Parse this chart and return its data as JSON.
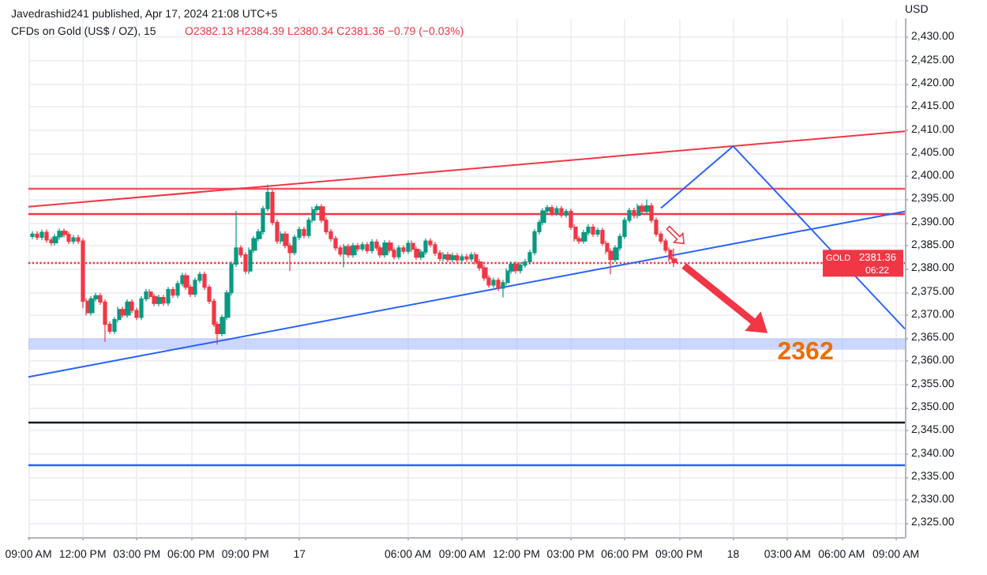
{
  "chart_data": {
    "type": "candlestick",
    "title": "CFDs on Gold (US$ / OZ), 15",
    "subtitle": "O2382.13 H2384.39 L2380.34 C2381.36 −0.79 (−0.03%)",
    "ylabel": "USD",
    "annotations": [
      "Javedrashid241 published, Apr 17, 2024 21:08 UTC+5",
      "GOLD",
      "06:22",
      {
        "text": "2362",
        "x": "2024-04-18T04:00",
        "y": 2362
      }
    ],
    "colors": [
      "#089981",
      "#f23645",
      "#089981",
      "#f23645",
      "#f23645",
      "#089981",
      "#089981",
      "#f23645",
      "#f23645",
      "#089981",
      "#f23645",
      "#f23645",
      "#f23645",
      "#089981",
      "#089981",
      "#f23645",
      "#f23645",
      "#f23645",
      "#089981",
      "#089981",
      "#f23645",
      "#089981",
      "#f23645",
      "#f23645",
      "#089981",
      "#089981",
      "#f23645",
      "#f23645",
      "#089981",
      "#f23645",
      "#089981",
      "#f23645",
      "#089981",
      "#089981",
      "#f23645",
      "#f23645",
      "#089981",
      "#089981",
      "#f23645",
      "#f23645",
      "#f23645",
      "#f23645",
      "#089981",
      "#089981",
      "#089981",
      "#089981",
      "#f23645",
      "#f23645",
      "#089981",
      "#089981",
      "#089981",
      "#089981",
      "#089981",
      "#f23645",
      "#f23645",
      "#089981",
      "#f23645",
      "#f23645",
      "#089981",
      "#089981",
      "#f23645",
      "#089981",
      "#089981",
      "#089981",
      "#f23645",
      "#f23645",
      "#f23645",
      "#f23645",
      "#f23645",
      "#089981",
      "#f23645",
      "#089981",
      "#f23645",
      "#089981",
      "#f23645",
      "#089981",
      "#f23645",
      "#f23645",
      "#089981",
      "#f23645",
      "#f23645",
      "#089981",
      "#f23645",
      "#089981",
      "#f23645",
      "#f23645",
      "#089981",
      "#089981",
      "#f23645",
      "#f23645",
      "#f23645",
      "#089981",
      "#f23645",
      "#089981",
      "#f23645",
      "#089981",
      "#f23645",
      "#089981",
      "#f23645",
      "#f23645",
      "#f23645",
      "#f23645",
      "#089981",
      "#f23645",
      "#089981",
      "#089981",
      "#089981",
      "#f23645",
      "#089981",
      "#089981",
      "#089981",
      "#089981",
      "#089981",
      "#089981",
      "#089981",
      "#f23645",
      "#089981",
      "#f23645",
      "#089981",
      "#f23645",
      "#f23645",
      "#f23645",
      "#089981",
      "#089981",
      "#f23645",
      "#089981",
      "#f23645",
      "#f23645",
      "#f23645",
      "#089981",
      "#089981",
      "#089981",
      "#089981",
      "#f23645",
      "#089981",
      "#f23645",
      "#089981",
      "#f23645",
      "#f23645",
      "#f23645",
      "#f23645",
      "#f23645",
      "#f23645"
    ],
    "x": [
      "2024-04-16T09:15",
      "2024-04-16T09:30",
      "2024-04-16T09:45",
      "2024-04-16T10:00",
      "2024-04-16T10:15",
      "2024-04-16T10:30",
      "2024-04-16T10:45",
      "2024-04-16T11:00",
      "2024-04-16T11:15",
      "2024-04-16T11:30",
      "2024-04-16T11:45",
      "2024-04-16T12:00",
      "2024-04-16T12:15",
      "2024-04-16T12:30",
      "2024-04-16T12:45",
      "2024-04-16T13:00",
      "2024-04-16T13:15",
      "2024-04-16T13:30",
      "2024-04-16T13:45",
      "2024-04-16T14:00",
      "2024-04-16T14:15",
      "2024-04-16T14:30",
      "2024-04-16T14:45",
      "2024-04-16T15:00",
      "2024-04-16T15:15",
      "2024-04-16T15:30",
      "2024-04-16T15:45",
      "2024-04-16T16:00",
      "2024-04-16T16:15",
      "2024-04-16T16:30",
      "2024-04-16T16:45",
      "2024-04-16T17:00",
      "2024-04-16T17:15",
      "2024-04-16T17:30",
      "2024-04-16T17:45",
      "2024-04-16T18:00",
      "2024-04-16T18:15",
      "2024-04-16T18:30",
      "2024-04-16T18:45",
      "2024-04-16T19:00",
      "2024-04-16T19:15",
      "2024-04-16T19:30",
      "2024-04-16T19:45",
      "2024-04-16T20:00",
      "2024-04-16T20:15",
      "2024-04-16T20:30",
      "2024-04-16T20:45",
      "2024-04-16T21:00",
      "2024-04-16T21:15",
      "2024-04-16T21:30",
      "2024-04-16T21:45",
      "2024-04-16T22:00",
      "2024-04-16T22:15",
      "2024-04-16T22:30",
      "2024-04-16T22:45",
      "2024-04-16T23:00",
      "2024-04-16T23:15",
      "2024-04-16T23:30",
      "2024-04-16T23:45",
      "2024-04-17T00:00",
      "2024-04-17T00:15",
      "2024-04-17T00:30",
      "2024-04-17T00:45",
      "2024-04-17T01:00",
      "2024-04-17T01:15",
      "2024-04-17T01:30",
      "2024-04-17T01:45",
      "2024-04-17T02:00",
      "2024-04-17T02:15",
      "2024-04-17T02:30",
      "2024-04-17T02:45",
      "2024-04-17T03:00",
      "2024-04-17T03:15",
      "2024-04-17T03:30",
      "2024-04-17T03:45",
      "2024-04-17T04:00",
      "2024-04-17T04:15",
      "2024-04-17T04:30",
      "2024-04-17T04:45",
      "2024-04-17T05:00",
      "2024-04-17T05:15",
      "2024-04-17T05:30",
      "2024-04-17T05:45",
      "2024-04-17T06:00",
      "2024-04-17T06:15",
      "2024-04-17T06:30",
      "2024-04-17T06:45",
      "2024-04-17T07:00",
      "2024-04-17T07:15",
      "2024-04-17T07:30",
      "2024-04-17T07:45",
      "2024-04-17T08:00",
      "2024-04-17T08:15",
      "2024-04-17T08:30",
      "2024-04-17T08:45",
      "2024-04-17T09:00",
      "2024-04-17T09:15",
      "2024-04-17T09:30",
      "2024-04-17T09:45",
      "2024-04-17T10:00",
      "2024-04-17T10:15",
      "2024-04-17T10:30",
      "2024-04-17T10:45",
      "2024-04-17T11:00",
      "2024-04-17T11:15",
      "2024-04-17T11:30",
      "2024-04-17T11:45",
      "2024-04-17T12:00",
      "2024-04-17T12:15",
      "2024-04-17T12:30",
      "2024-04-17T12:45",
      "2024-04-17T13:00",
      "2024-04-17T13:15",
      "2024-04-17T13:30",
      "2024-04-17T13:45",
      "2024-04-17T14:00",
      "2024-04-17T14:15",
      "2024-04-17T14:30",
      "2024-04-17T14:45",
      "2024-04-17T15:00",
      "2024-04-17T15:15",
      "2024-04-17T15:30",
      "2024-04-17T15:45",
      "2024-04-17T16:00",
      "2024-04-17T16:15",
      "2024-04-17T16:30",
      "2024-04-17T16:45",
      "2024-04-17T17:00",
      "2024-04-17T17:15",
      "2024-04-17T17:30",
      "2024-04-17T17:45",
      "2024-04-17T18:00",
      "2024-04-17T18:15",
      "2024-04-17T18:30",
      "2024-04-17T18:45",
      "2024-04-17T19:00",
      "2024-04-17T19:15",
      "2024-04-17T19:30",
      "2024-04-17T19:45",
      "2024-04-17T20:00",
      "2024-04-17T20:15",
      "2024-04-17T20:30",
      "2024-04-17T20:45"
    ],
    "ohlc": [
      [
        2387.0,
        2388.1,
        2386.4,
        2387.5
      ],
      [
        2387.5,
        2388.1,
        2386.2,
        2386.8
      ],
      [
        2386.8,
        2388.5,
        2386.2,
        2387.9
      ],
      [
        2387.9,
        2388.5,
        2385.6,
        2386.2
      ],
      [
        2386.2,
        2386.8,
        2385.0,
        2385.6
      ],
      [
        2385.6,
        2387.5,
        2385.0,
        2386.9
      ],
      [
        2386.9,
        2388.7,
        2386.3,
        2388.1
      ],
      [
        2388.1,
        2388.7,
        2386.8,
        2387.4
      ],
      [
        2387.4,
        2388.0,
        2385.3,
        2385.9
      ],
      [
        2385.9,
        2387.3,
        2385.3,
        2386.7
      ],
      [
        2386.7,
        2387.3,
        2385.4,
        2386.0
      ],
      [
        2386.0,
        2386.6,
        2371.5,
        2373.0
      ],
      [
        2373.0,
        2373.6,
        2369.9,
        2370.5
      ],
      [
        2370.5,
        2374.1,
        2369.9,
        2373.5
      ],
      [
        2373.5,
        2374.8,
        2372.9,
        2374.2
      ],
      [
        2374.2,
        2374.8,
        2372.2,
        2372.8
      ],
      [
        2372.8,
        2373.4,
        2364.2,
        2368.0
      ],
      [
        2368.0,
        2368.6,
        2365.9,
        2366.5
      ],
      [
        2366.5,
        2369.6,
        2365.9,
        2369.0
      ],
      [
        2369.0,
        2371.8,
        2368.4,
        2371.2
      ],
      [
        2371.2,
        2371.8,
        2369.4,
        2370.0
      ],
      [
        2370.0,
        2373.4,
        2369.4,
        2372.8
      ],
      [
        2372.8,
        2373.4,
        2370.4,
        2371.0
      ],
      [
        2371.0,
        2371.6,
        2368.9,
        2369.5
      ],
      [
        2369.5,
        2374.1,
        2368.9,
        2373.5
      ],
      [
        2373.5,
        2375.6,
        2372.9,
        2375.0
      ],
      [
        2375.0,
        2375.6,
        2373.4,
        2374.0
      ],
      [
        2374.0,
        2374.6,
        2371.9,
        2372.5
      ],
      [
        2372.5,
        2374.4,
        2371.9,
        2373.8
      ],
      [
        2373.8,
        2374.4,
        2372.0,
        2372.6
      ],
      [
        2372.6,
        2376.1,
        2372.0,
        2375.5
      ],
      [
        2375.5,
        2376.1,
        2373.7,
        2374.3
      ],
      [
        2374.3,
        2377.4,
        2373.7,
        2376.8
      ],
      [
        2376.8,
        2379.1,
        2376.2,
        2378.5
      ],
      [
        2378.5,
        2379.1,
        2375.4,
        2376.0
      ],
      [
        2376.0,
        2376.6,
        2373.9,
        2374.5
      ],
      [
        2374.5,
        2378.1,
        2373.9,
        2377.5
      ],
      [
        2377.5,
        2379.4,
        2376.9,
        2378.8
      ],
      [
        2378.8,
        2379.4,
        2375.4,
        2376.0
      ],
      [
        2376.0,
        2376.6,
        2372.4,
        2373.0
      ],
      [
        2373.0,
        2373.6,
        2367.4,
        2368.0
      ],
      [
        2368.0,
        2368.6,
        2363.6,
        2366.0
      ],
      [
        2366.0,
        2370.1,
        2365.4,
        2369.5
      ],
      [
        2369.5,
        2375.4,
        2368.9,
        2374.8
      ],
      [
        2374.8,
        2381.6,
        2374.2,
        2381.0
      ],
      [
        2381.0,
        2392.5,
        2380.4,
        2384.5
      ],
      [
        2384.5,
        2385.1,
        2382.4,
        2383.0
      ],
      [
        2383.0,
        2383.6,
        2378.9,
        2379.5
      ],
      [
        2379.5,
        2384.6,
        2378.9,
        2384.0
      ],
      [
        2384.0,
        2387.1,
        2383.4,
        2386.5
      ],
      [
        2386.5,
        2388.6,
        2385.9,
        2388.0
      ],
      [
        2388.0,
        2393.6,
        2387.4,
        2393.0
      ],
      [
        2393.0,
        2398.2,
        2392.4,
        2396.5
      ],
      [
        2396.5,
        2397.1,
        2389.4,
        2390.0
      ],
      [
        2390.0,
        2390.6,
        2385.4,
        2386.0
      ],
      [
        2386.0,
        2388.1,
        2385.4,
        2387.5
      ],
      [
        2387.5,
        2388.1,
        2384.4,
        2385.0
      ],
      [
        2385.0,
        2385.6,
        2379.5,
        2383.5
      ],
      [
        2383.5,
        2387.4,
        2382.9,
        2386.8
      ],
      [
        2386.8,
        2389.1,
        2386.2,
        2388.5
      ],
      [
        2388.5,
        2389.1,
        2386.6,
        2387.2
      ],
      [
        2387.2,
        2391.1,
        2386.6,
        2390.5
      ],
      [
        2390.5,
        2393.4,
        2389.9,
        2392.8
      ],
      [
        2392.8,
        2394.0,
        2392.2,
        2393.4
      ],
      [
        2393.4,
        2394.0,
        2389.9,
        2390.5
      ],
      [
        2390.5,
        2391.1,
        2387.4,
        2388.0
      ],
      [
        2388.0,
        2388.6,
        2385.9,
        2386.5
      ],
      [
        2386.5,
        2387.1,
        2383.9,
        2384.5
      ],
      [
        2384.5,
        2385.1,
        2382.6,
        2383.2
      ],
      [
        2383.2,
        2385.4,
        2380.3,
        2384.8
      ],
      [
        2384.8,
        2385.4,
        2382.4,
        2383.0
      ],
      [
        2383.0,
        2385.6,
        2382.4,
        2385.0
      ],
      [
        2385.0,
        2385.6,
        2383.7,
        2384.3
      ],
      [
        2384.3,
        2385.8,
        2383.7,
        2385.2
      ],
      [
        2385.2,
        2385.8,
        2383.3,
        2383.9
      ],
      [
        2383.9,
        2386.4,
        2383.3,
        2385.8
      ],
      [
        2385.8,
        2386.4,
        2383.9,
        2384.5
      ],
      [
        2384.5,
        2385.1,
        2382.4,
        2383.0
      ],
      [
        2383.0,
        2386.2,
        2382.4,
        2385.6
      ],
      [
        2385.6,
        2386.2,
        2383.4,
        2384.0
      ],
      [
        2384.0,
        2384.6,
        2382.0,
        2382.6
      ],
      [
        2382.6,
        2385.1,
        2382.0,
        2384.5
      ],
      [
        2384.5,
        2385.1,
        2383.2,
        2383.8
      ],
      [
        2383.8,
        2386.1,
        2383.2,
        2385.5
      ],
      [
        2385.5,
        2386.1,
        2383.6,
        2384.2
      ],
      [
        2384.2,
        2384.8,
        2381.9,
        2382.5
      ],
      [
        2382.5,
        2384.2,
        2381.9,
        2383.6
      ],
      [
        2383.6,
        2386.6,
        2383.0,
        2386.0
      ],
      [
        2386.0,
        2386.6,
        2384.6,
        2385.2
      ],
      [
        2385.2,
        2385.8,
        2382.8,
        2383.4
      ],
      [
        2383.4,
        2384.0,
        2381.6,
        2382.2
      ],
      [
        2382.2,
        2383.6,
        2381.6,
        2383.0
      ],
      [
        2383.0,
        2383.6,
        2381.4,
        2382.0
      ],
      [
        2382.0,
        2383.4,
        2381.4,
        2382.8
      ],
      [
        2382.8,
        2383.4,
        2381.3,
        2381.9
      ],
      [
        2381.9,
        2383.2,
        2381.3,
        2382.6
      ],
      [
        2382.6,
        2383.2,
        2381.5,
        2382.1
      ],
      [
        2382.1,
        2383.6,
        2381.5,
        2383.0
      ],
      [
        2383.0,
        2383.6,
        2380.9,
        2381.5
      ],
      [
        2381.5,
        2382.1,
        2379.6,
        2380.2
      ],
      [
        2380.2,
        2380.8,
        2377.4,
        2378.0
      ],
      [
        2378.0,
        2378.6,
        2375.9,
        2376.5
      ],
      [
        2376.5,
        2378.1,
        2375.9,
        2377.5
      ],
      [
        2377.5,
        2378.1,
        2375.2,
        2375.8
      ],
      [
        2375.8,
        2377.6,
        2373.8,
        2377.0
      ],
      [
        2377.0,
        2380.1,
        2376.4,
        2379.5
      ],
      [
        2379.5,
        2381.6,
        2378.9,
        2381.0
      ],
      [
        2381.0,
        2381.6,
        2379.0,
        2379.6
      ],
      [
        2379.6,
        2381.4,
        2379.0,
        2380.8
      ],
      [
        2380.8,
        2382.1,
        2380.2,
        2381.5
      ],
      [
        2381.5,
        2384.1,
        2380.9,
        2383.5
      ],
      [
        2383.5,
        2388.6,
        2382.9,
        2388.0
      ],
      [
        2388.0,
        2390.6,
        2387.4,
        2390.0
      ],
      [
        2390.0,
        2393.1,
        2389.4,
        2392.5
      ],
      [
        2392.5,
        2393.8,
        2391.9,
        2393.2
      ],
      [
        2393.2,
        2393.8,
        2391.4,
        2392.0
      ],
      [
        2392.0,
        2393.6,
        2391.4,
        2393.0
      ],
      [
        2393.0,
        2393.6,
        2391.0,
        2391.6
      ],
      [
        2391.6,
        2393.0,
        2391.0,
        2392.4
      ],
      [
        2392.4,
        2393.0,
        2388.4,
        2389.0
      ],
      [
        2389.0,
        2389.6,
        2385.9,
        2386.5
      ],
      [
        2386.5,
        2387.1,
        2385.4,
        2386.0
      ],
      [
        2386.0,
        2388.4,
        2385.4,
        2387.8
      ],
      [
        2387.8,
        2389.6,
        2387.2,
        2389.0
      ],
      [
        2389.0,
        2389.6,
        2386.9,
        2387.5
      ],
      [
        2387.5,
        2388.9,
        2386.9,
        2388.3
      ],
      [
        2388.3,
        2388.9,
        2384.9,
        2385.5
      ],
      [
        2385.5,
        2386.1,
        2383.2,
        2383.8
      ],
      [
        2383.8,
        2384.4,
        2378.8,
        2382.0
      ],
      [
        2382.0,
        2385.1,
        2381.4,
        2384.5
      ],
      [
        2384.5,
        2387.6,
        2383.9,
        2387.0
      ],
      [
        2387.0,
        2391.1,
        2386.4,
        2390.5
      ],
      [
        2390.5,
        2393.2,
        2389.9,
        2392.6
      ],
      [
        2392.6,
        2393.2,
        2390.9,
        2391.5
      ],
      [
        2391.5,
        2394.1,
        2390.9,
        2393.5
      ],
      [
        2393.5,
        2394.1,
        2391.8,
        2392.4
      ],
      [
        2392.4,
        2395.0,
        2391.8,
        2393.6
      ],
      [
        2393.6,
        2394.2,
        2389.9,
        2390.5
      ],
      [
        2390.5,
        2391.1,
        2386.9,
        2387.5
      ],
      [
        2387.5,
        2388.1,
        2385.4,
        2386.0
      ],
      [
        2386.0,
        2386.6,
        2383.4,
        2384.0
      ],
      [
        2384.0,
        2384.6,
        2381.5,
        2382.13
      ],
      [
        2382.13,
        2384.39,
        2380.34,
        2381.36
      ]
    ],
    "series": [
      {
        "type": "line",
        "color": "#f23645",
        "x": [
          "2024-04-16T09:00",
          "2024-04-18T09:30"
        ],
        "values": [
          2393.4,
          2409.7
        ]
      },
      {
        "type": "line",
        "color": "#2962ff",
        "x": [
          "2024-04-16T09:00",
          "2024-04-18T09:30"
        ],
        "values": [
          2356.6,
          2392.4
        ]
      },
      {
        "type": "line",
        "color": "#2962ff",
        "x": [
          "2024-04-17T20:00",
          "2024-04-18T00:00",
          "2024-04-18T09:30"
        ],
        "values": [
          2393.1,
          2406.5,
          2367.0
        ]
      }
    ],
    "marker": "none",
    "line_style": "solid",
    "ref_lines": [
      {
        "axis": "y",
        "value": 2397.5,
        "label": null,
        "color": "#f7525f"
      },
      {
        "axis": "y",
        "value": 2391.8,
        "label": null,
        "color": "#f23645"
      },
      {
        "axis": "y",
        "value": 2381.36,
        "label": "2381.36",
        "color": "#f23645",
        "line_style": "dotted"
      },
      {
        "axis": "y",
        "value": 2347,
        "label": null,
        "color": "#131722"
      },
      {
        "axis": "y",
        "value": 2337.5,
        "label": null,
        "color": "#2962ff"
      }
    ],
    "bands": [
      {
        "axis": "y",
        "from": 2362.5,
        "to": 2365,
        "label": null,
        "color": "#a8bcff"
      }
    ],
    "xlim": [
      "2024-04-16T09:00",
      "2024-04-18T09:30"
    ],
    "xticks": [
      {
        "value": "2024-04-16T09:00",
        "label": "09:00 AM"
      },
      {
        "value": "2024-04-16T12:00",
        "label": "12:00 PM"
      },
      {
        "value": "2024-04-16T15:00",
        "label": "03:00 PM"
      },
      {
        "value": "2024-04-16T18:00",
        "label": "06:00 PM"
      },
      {
        "value": "2024-04-16T21:00",
        "label": "09:00 PM"
      },
      {
        "value": "2024-04-17T00:00",
        "label": "17"
      },
      {
        "value": "2024-04-17T06:00",
        "label": "06:00 AM"
      },
      {
        "value": "2024-04-17T09:00",
        "label": "09:00 AM"
      },
      {
        "value": "2024-04-17T12:00",
        "label": "12:00 PM"
      },
      {
        "value": "2024-04-17T15:00",
        "label": "03:00 PM"
      },
      {
        "value": "2024-04-17T18:00",
        "label": "06:00 PM"
      },
      {
        "value": "2024-04-17T21:00",
        "label": "09:00 PM"
      },
      {
        "value": "2024-04-18T00:00",
        "label": "18"
      },
      {
        "value": "2024-04-18T03:00",
        "label": "03:00 AM"
      },
      {
        "value": "2024-04-18T06:00",
        "label": "06:00 AM"
      },
      {
        "value": "2024-04-18T09:00",
        "label": "09:00 AM"
      }
    ],
    "ylim": [
      2322,
      2434
    ],
    "yticks": [
      {
        "value": 2325,
        "label": "2,325.00"
      },
      {
        "value": 2330,
        "label": "2,330.00"
      },
      {
        "value": 2335,
        "label": "2,335.00"
      },
      {
        "value": 2340,
        "label": "2,340.00"
      },
      {
        "value": 2345,
        "label": "2,345.00"
      },
      {
        "value": 2350,
        "label": "2,350.00"
      },
      {
        "value": 2355,
        "label": "2,355.00"
      },
      {
        "value": 2360,
        "label": "2,360.00"
      },
      {
        "value": 2365,
        "label": "2,365.00"
      },
      {
        "value": 2370,
        "label": "2,370.00"
      },
      {
        "value": 2375,
        "label": "2,375.00"
      },
      {
        "value": 2380,
        "label": "2,380.00"
      },
      {
        "value": 2385,
        "label": "2,385.00"
      },
      {
        "value": 2390,
        "label": "2,390.00"
      },
      {
        "value": 2395,
        "label": "2,395.00"
      },
      {
        "value": 2400,
        "label": "2,400.00"
      },
      {
        "value": 2405,
        "label": "2,405.00"
      },
      {
        "value": 2410,
        "label": "2,410.00"
      },
      {
        "value": 2415,
        "label": "2,415.00"
      },
      {
        "value": 2420,
        "label": "2,420.00"
      },
      {
        "value": 2425,
        "label": "2,425.00"
      },
      {
        "value": 2430,
        "label": "2,430.00"
      }
    ],
    "grid": true
  }
}
